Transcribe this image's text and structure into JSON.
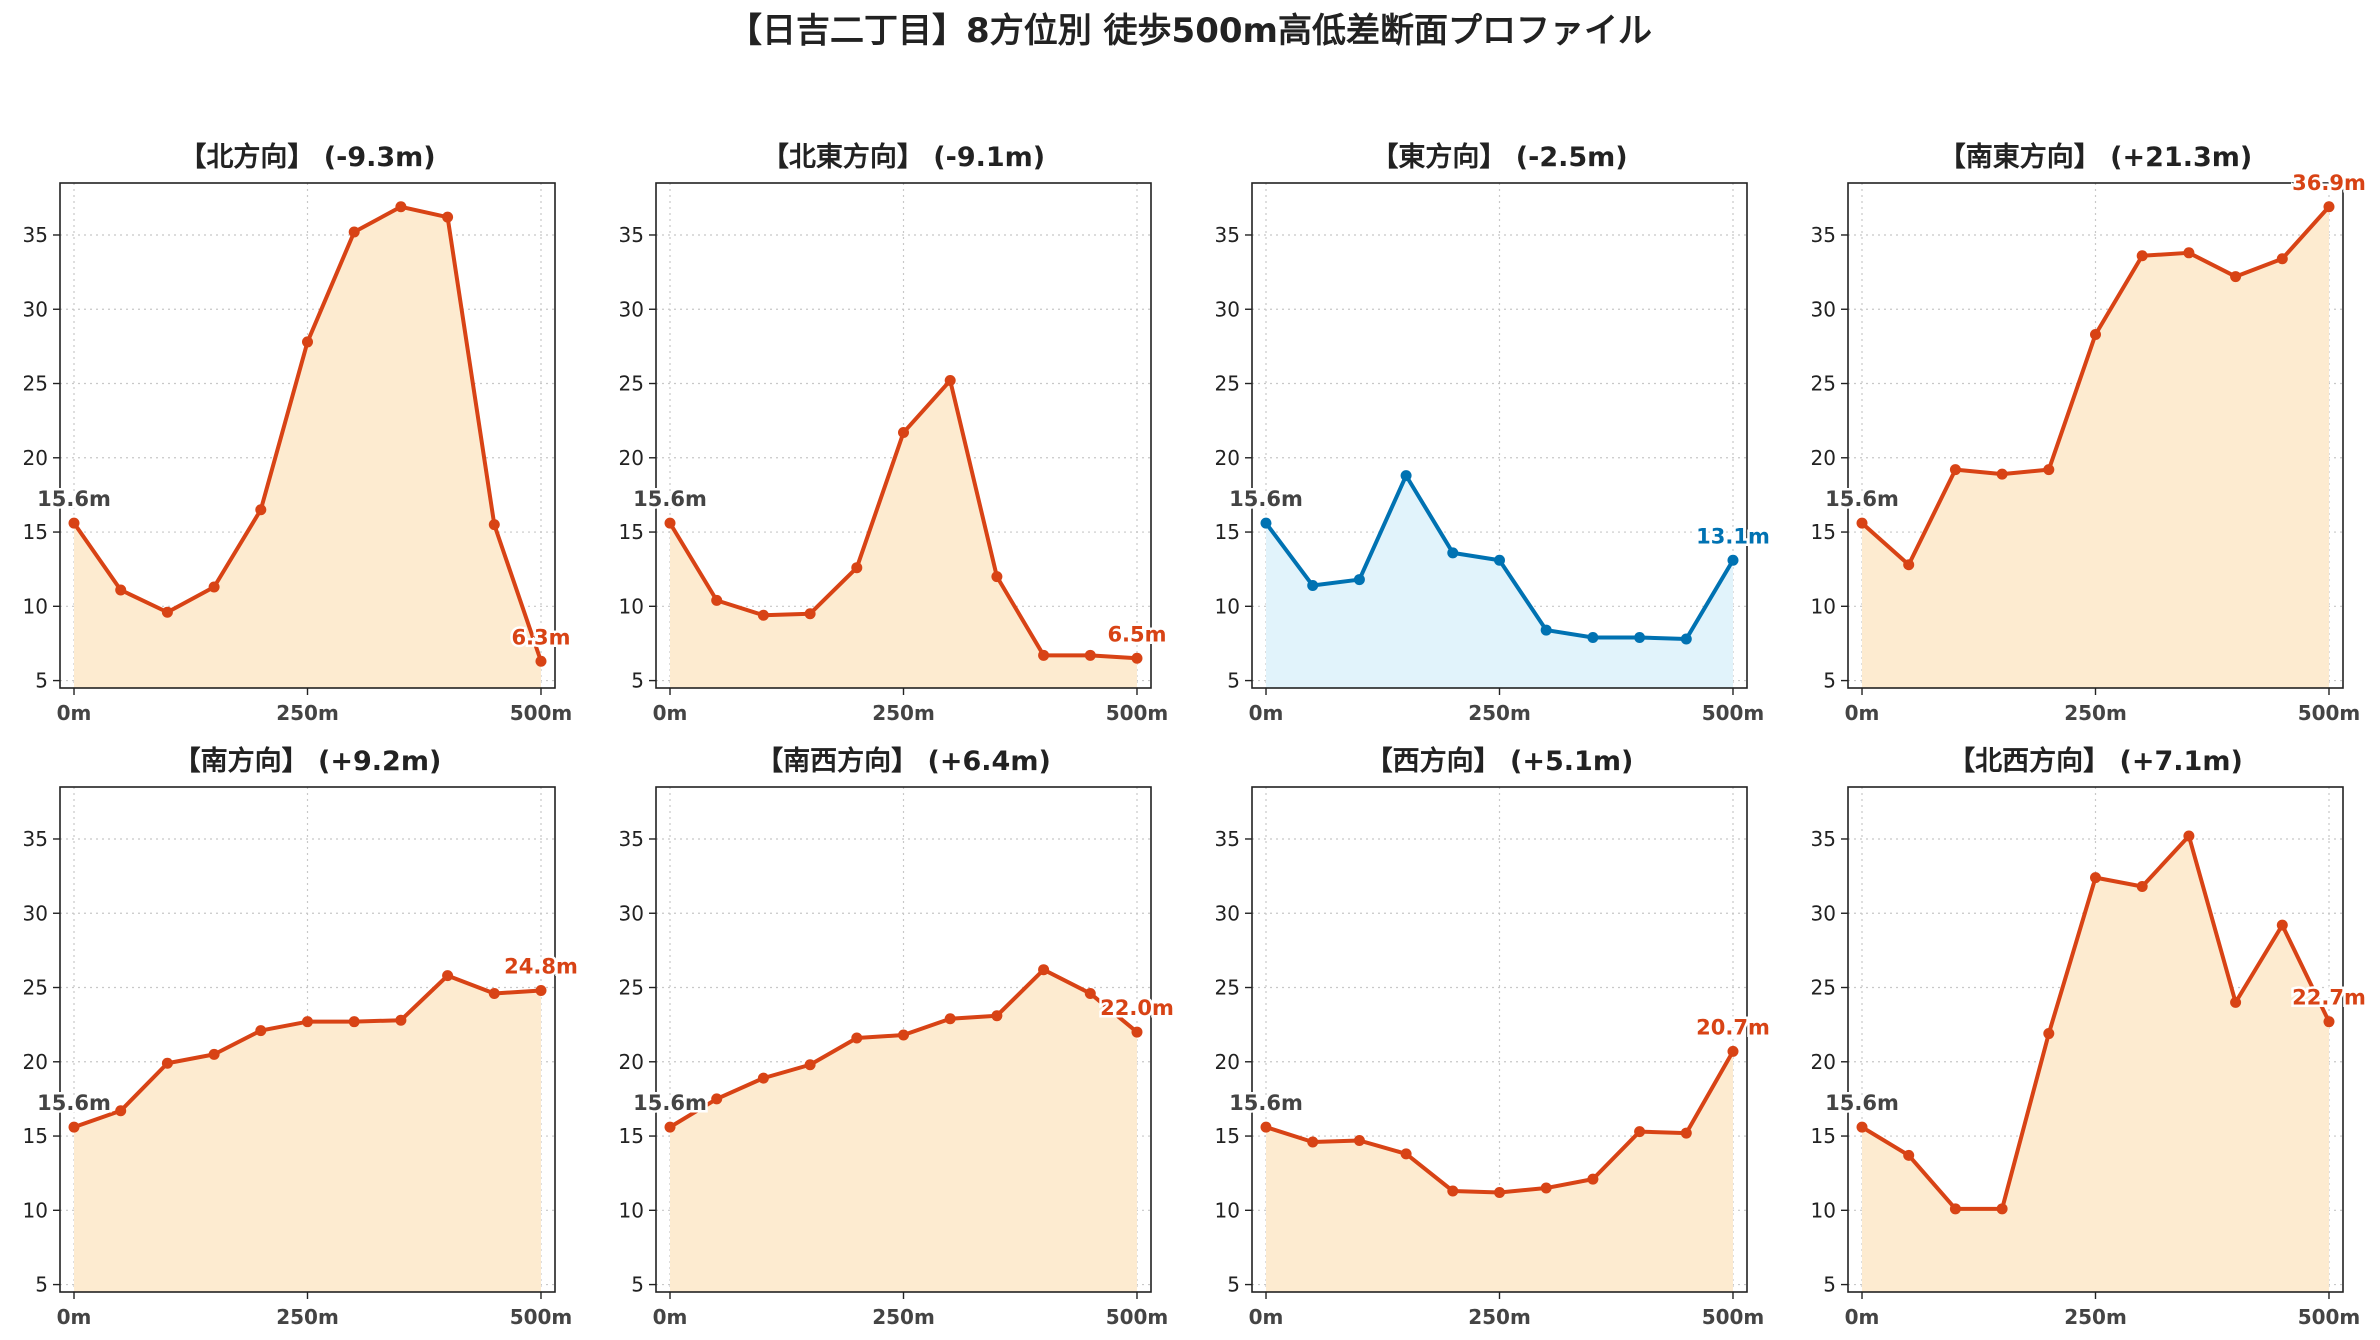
{
  "figure_title": "【日吉二丁目】8方位別 徒歩500m高低差断面プロファイル",
  "colors": {
    "down": "#d84315",
    "up": "#0072b2",
    "fill_down": "#fdebd0",
    "fill_up": "#e1f3fb",
    "start_label": "#444444"
  },
  "chart_data": [
    {
      "type": "line",
      "title": "【北方向】 (-9.3m)",
      "x": [
        0,
        50,
        100,
        150,
        200,
        250,
        300,
        350,
        400,
        450,
        500
      ],
      "x_ticks": [
        0,
        250,
        500
      ],
      "x_tick_labels": [
        "0m",
        "250m",
        "500m"
      ],
      "y_ticks": [
        5,
        10,
        15,
        20,
        25,
        30,
        35
      ],
      "ylim": [
        4.5,
        38.5
      ],
      "xlim": [
        -15,
        515
      ],
      "grid": true,
      "series": [
        {
          "values": [
            15.6,
            11.1,
            9.6,
            11.3,
            16.5,
            27.8,
            35.2,
            36.9,
            36.2,
            15.5,
            6.3
          ]
        }
      ],
      "start_label": "15.6m",
      "end_label": "6.3m",
      "trend": "down"
    },
    {
      "type": "line",
      "title": "【北東方向】 (-9.1m)",
      "x": [
        0,
        50,
        100,
        150,
        200,
        250,
        300,
        350,
        400,
        450,
        500
      ],
      "x_ticks": [
        0,
        250,
        500
      ],
      "x_tick_labels": [
        "0m",
        "250m",
        "500m"
      ],
      "y_ticks": [
        5,
        10,
        15,
        20,
        25,
        30,
        35
      ],
      "ylim": [
        4.5,
        38.5
      ],
      "xlim": [
        -15,
        515
      ],
      "grid": true,
      "series": [
        {
          "values": [
            15.6,
            10.4,
            9.4,
            9.5,
            12.6,
            21.7,
            25.2,
            12.0,
            6.7,
            6.7,
            6.5
          ]
        }
      ],
      "start_label": "15.6m",
      "end_label": "6.5m",
      "trend": "down"
    },
    {
      "type": "line",
      "title": "【東方向】 (-2.5m)",
      "x": [
        0,
        50,
        100,
        150,
        200,
        250,
        300,
        350,
        400,
        450,
        500
      ],
      "x_ticks": [
        0,
        250,
        500
      ],
      "x_tick_labels": [
        "0m",
        "250m",
        "500m"
      ],
      "y_ticks": [
        5,
        10,
        15,
        20,
        25,
        30,
        35
      ],
      "ylim": [
        4.5,
        38.5
      ],
      "xlim": [
        -15,
        515
      ],
      "grid": true,
      "series": [
        {
          "values": [
            15.6,
            11.4,
            11.8,
            18.8,
            13.6,
            13.1,
            8.4,
            7.9,
            7.9,
            7.8,
            13.1
          ]
        }
      ],
      "start_label": "15.6m",
      "end_label": "13.1m",
      "trend": "up"
    },
    {
      "type": "line",
      "title": "【南東方向】 (+21.3m)",
      "x": [
        0,
        50,
        100,
        150,
        200,
        250,
        300,
        350,
        400,
        450,
        500
      ],
      "x_ticks": [
        0,
        250,
        500
      ],
      "x_tick_labels": [
        "0m",
        "250m",
        "500m"
      ],
      "y_ticks": [
        5,
        10,
        15,
        20,
        25,
        30,
        35
      ],
      "ylim": [
        4.5,
        38.5
      ],
      "xlim": [
        -15,
        515
      ],
      "grid": true,
      "series": [
        {
          "values": [
            15.6,
            12.8,
            19.2,
            18.9,
            19.2,
            28.3,
            33.6,
            33.8,
            32.2,
            33.4,
            36.9
          ]
        }
      ],
      "start_label": "15.6m",
      "end_label": "36.9m",
      "trend": "down"
    },
    {
      "type": "line",
      "title": "【南方向】 (+9.2m)",
      "x": [
        0,
        50,
        100,
        150,
        200,
        250,
        300,
        350,
        400,
        450,
        500
      ],
      "x_ticks": [
        0,
        250,
        500
      ],
      "x_tick_labels": [
        "0m",
        "250m",
        "500m"
      ],
      "y_ticks": [
        5,
        10,
        15,
        20,
        25,
        30,
        35
      ],
      "ylim": [
        4.5,
        38.5
      ],
      "xlim": [
        -15,
        515
      ],
      "grid": true,
      "series": [
        {
          "values": [
            15.6,
            16.7,
            19.9,
            20.5,
            22.1,
            22.7,
            22.7,
            22.8,
            25.8,
            24.6,
            24.8
          ]
        }
      ],
      "start_label": "15.6m",
      "end_label": "24.8m",
      "trend": "down"
    },
    {
      "type": "line",
      "title": "【南西方向】 (+6.4m)",
      "x": [
        0,
        50,
        100,
        150,
        200,
        250,
        300,
        350,
        400,
        450,
        500
      ],
      "x_ticks": [
        0,
        250,
        500
      ],
      "x_tick_labels": [
        "0m",
        "250m",
        "500m"
      ],
      "y_ticks": [
        5,
        10,
        15,
        20,
        25,
        30,
        35
      ],
      "ylim": [
        4.5,
        38.5
      ],
      "xlim": [
        -15,
        515
      ],
      "grid": true,
      "series": [
        {
          "values": [
            15.6,
            17.5,
            18.9,
            19.8,
            21.6,
            21.8,
            22.9,
            23.1,
            26.2,
            24.6,
            22.0
          ]
        }
      ],
      "start_label": "15.6m",
      "end_label": "22.0m",
      "trend": "down"
    },
    {
      "type": "line",
      "title": "【西方向】 (+5.1m)",
      "x": [
        0,
        50,
        100,
        150,
        200,
        250,
        300,
        350,
        400,
        450,
        500
      ],
      "x_ticks": [
        0,
        250,
        500
      ],
      "x_tick_labels": [
        "0m",
        "250m",
        "500m"
      ],
      "y_ticks": [
        5,
        10,
        15,
        20,
        25,
        30,
        35
      ],
      "ylim": [
        4.5,
        38.5
      ],
      "xlim": [
        -15,
        515
      ],
      "grid": true,
      "series": [
        {
          "values": [
            15.6,
            14.6,
            14.7,
            13.8,
            11.3,
            11.2,
            11.5,
            12.1,
            15.3,
            15.2,
            20.7
          ]
        }
      ],
      "start_label": "15.6m",
      "end_label": "20.7m",
      "trend": "down"
    },
    {
      "type": "line",
      "title": "【北西方向】 (+7.1m)",
      "x": [
        0,
        50,
        100,
        150,
        200,
        250,
        300,
        350,
        400,
        450,
        500
      ],
      "x_ticks": [
        0,
        250,
        500
      ],
      "x_tick_labels": [
        "0m",
        "250m",
        "500m"
      ],
      "y_ticks": [
        5,
        10,
        15,
        20,
        25,
        30,
        35
      ],
      "ylim": [
        4.5,
        38.5
      ],
      "xlim": [
        -15,
        515
      ],
      "grid": true,
      "series": [
        {
          "values": [
            15.6,
            13.7,
            10.1,
            10.1,
            21.9,
            32.4,
            31.8,
            35.2,
            24.0,
            29.2,
            22.7
          ]
        }
      ],
      "start_label": "15.6m",
      "end_label": "22.7m",
      "trend": "down"
    }
  ]
}
